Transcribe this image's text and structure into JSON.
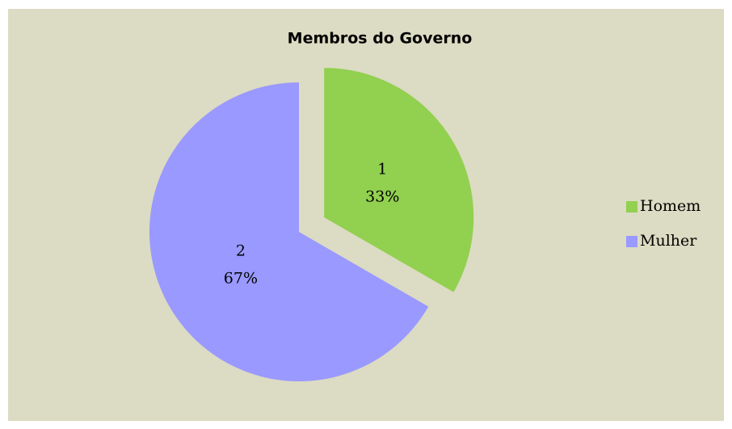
{
  "chart_data": {
    "type": "pie",
    "title": "Membros do Governo",
    "categories": [
      "Homem",
      "Mulher"
    ],
    "values": [
      1,
      2
    ],
    "percent_labels": [
      "33%",
      "67%"
    ],
    "colors": [
      "#92d050",
      "#9999ff"
    ],
    "explode": [
      true,
      false
    ],
    "legend": "right"
  }
}
